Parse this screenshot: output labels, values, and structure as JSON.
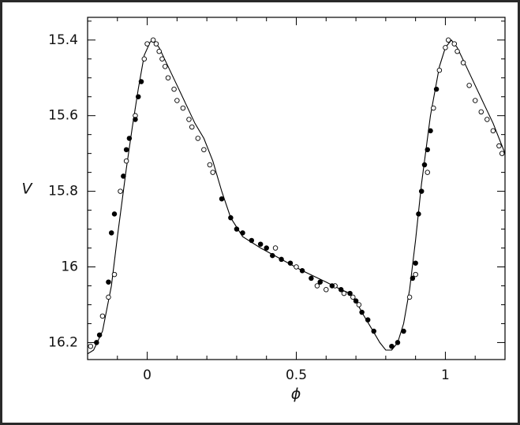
{
  "chart_data": {
    "type": "scatter",
    "xlabel": "ϕ",
    "ylabel": "V",
    "xlim": [
      -0.2,
      1.2
    ],
    "ylim": [
      16.245,
      15.34
    ],
    "xticks": [
      0,
      0.5,
      1
    ],
    "yticks": [
      15.4,
      15.6,
      15.8,
      16,
      16.2
    ],
    "xminorticks": [
      -0.1,
      0.1,
      0.2,
      0.3,
      0.4,
      0.6,
      0.7,
      0.8,
      0.9,
      1.1
    ],
    "yminorticks": [
      15.35,
      15.45,
      15.5,
      15.55,
      15.65,
      15.7,
      15.75,
      15.85,
      15.9,
      15.95,
      16.05,
      16.1,
      16.15
    ],
    "series": [
      {
        "kind": "line",
        "color": "#000000",
        "x": [
          -0.2,
          -0.18,
          -0.15,
          -0.12,
          -0.1,
          -0.07,
          -0.05,
          -0.03,
          -0.01,
          0.01,
          0.02,
          0.04,
          0.07,
          0.1,
          0.13,
          0.16,
          0.19,
          0.22,
          0.25,
          0.28,
          0.32,
          0.38,
          0.45,
          0.52,
          0.6,
          0.65,
          0.68,
          0.7,
          0.72,
          0.75,
          0.78,
          0.8,
          0.82,
          0.84,
          0.86,
          0.88,
          0.9,
          0.92,
          0.95,
          0.98,
          1.0,
          1.02,
          1.04,
          1.07,
          1.1,
          1.13,
          1.16,
          1.2
        ],
        "values": [
          16.23,
          16.22,
          16.17,
          16.05,
          15.92,
          15.74,
          15.63,
          15.53,
          15.44,
          15.405,
          15.4,
          15.42,
          15.47,
          15.52,
          15.57,
          15.62,
          15.66,
          15.72,
          15.8,
          15.87,
          15.92,
          15.95,
          15.98,
          16.01,
          16.04,
          16.06,
          16.07,
          16.09,
          16.12,
          16.16,
          16.2,
          16.22,
          16.22,
          16.2,
          16.15,
          16.06,
          15.93,
          15.78,
          15.6,
          15.47,
          15.42,
          15.4,
          15.42,
          15.47,
          15.52,
          15.57,
          15.62,
          15.7
        ]
      },
      {
        "kind": "open",
        "color": "#000000",
        "x": [
          -0.19,
          -0.15,
          -0.13,
          -0.11,
          -0.09,
          -0.07,
          -0.04,
          -0.01,
          0.0,
          0.02,
          0.03,
          0.04,
          0.05,
          0.06,
          0.07,
          0.09,
          0.1,
          0.12,
          0.14,
          0.15,
          0.17,
          0.19,
          0.21,
          0.22,
          0.43,
          0.5,
          0.57,
          0.6,
          0.63,
          0.66,
          0.69,
          0.71,
          0.88,
          0.9,
          0.94,
          0.96,
          0.98,
          1.0,
          1.01,
          1.03,
          1.04,
          1.06,
          1.08,
          1.1,
          1.12,
          1.14,
          1.16,
          1.18,
          1.19
        ],
        "values": [
          16.21,
          16.13,
          16.08,
          16.02,
          15.8,
          15.72,
          15.6,
          15.45,
          15.41,
          15.4,
          15.41,
          15.43,
          15.45,
          15.47,
          15.5,
          15.53,
          15.56,
          15.58,
          15.61,
          15.63,
          15.66,
          15.69,
          15.73,
          15.75,
          15.95,
          16.0,
          16.05,
          16.06,
          16.05,
          16.07,
          16.08,
          16.1,
          16.08,
          16.02,
          15.75,
          15.58,
          15.48,
          15.42,
          15.4,
          15.41,
          15.43,
          15.46,
          15.52,
          15.56,
          15.59,
          15.61,
          15.64,
          15.68,
          15.7
        ]
      },
      {
        "kind": "filled",
        "color": "#000000",
        "x": [
          -0.17,
          -0.16,
          -0.13,
          -0.12,
          -0.11,
          -0.08,
          -0.07,
          -0.06,
          -0.04,
          -0.03,
          -0.02,
          0.25,
          0.28,
          0.3,
          0.32,
          0.35,
          0.38,
          0.4,
          0.42,
          0.45,
          0.48,
          0.52,
          0.55,
          0.58,
          0.62,
          0.65,
          0.68,
          0.7,
          0.72,
          0.74,
          0.76,
          0.82,
          0.84,
          0.86,
          0.89,
          0.9,
          0.91,
          0.92,
          0.93,
          0.94,
          0.95,
          0.97
        ],
        "values": [
          16.2,
          16.18,
          16.04,
          15.91,
          15.86,
          15.76,
          15.69,
          15.66,
          15.61,
          15.55,
          15.51,
          15.82,
          15.87,
          15.9,
          15.91,
          15.93,
          15.94,
          15.95,
          15.97,
          15.98,
          15.99,
          16.01,
          16.03,
          16.04,
          16.05,
          16.06,
          16.07,
          16.09,
          16.12,
          16.14,
          16.17,
          16.21,
          16.2,
          16.17,
          16.03,
          15.99,
          15.86,
          15.8,
          15.73,
          15.69,
          15.64,
          15.53
        ]
      }
    ]
  }
}
